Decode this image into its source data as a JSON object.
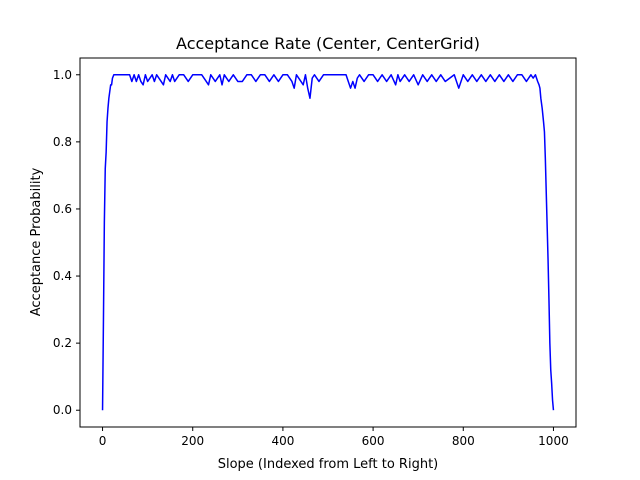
{
  "chart_data": {
    "type": "line",
    "title": "Acceptance Rate (Center, CenterGrid)",
    "xlabel": "Slope (Indexed from Left to Right)",
    "ylabel": "Acceptance Probability",
    "xlim": [
      -50,
      1050
    ],
    "ylim": [
      -0.05,
      1.05
    ],
    "xticks": [
      0,
      200,
      400,
      600,
      800,
      1000
    ],
    "yticks": [
      0.0,
      0.2,
      0.4,
      0.6,
      0.8,
      1.0
    ],
    "xtick_labels": [
      "0",
      "200",
      "400",
      "600",
      "800",
      "1000"
    ],
    "ytick_labels": [
      "0.0",
      "0.2",
      "0.4",
      "0.6",
      "0.8",
      "1.0"
    ],
    "grid": false,
    "series": [
      {
        "color": "#0000ff",
        "x": [
          0,
          2,
          4,
          6,
          8,
          10,
          12,
          14,
          16,
          18,
          20,
          22,
          25,
          28,
          30,
          35,
          40,
          45,
          50,
          60,
          65,
          70,
          75,
          80,
          85,
          90,
          95,
          100,
          110,
          115,
          120,
          130,
          135,
          140,
          150,
          155,
          160,
          170,
          180,
          190,
          200,
          210,
          220,
          230,
          235,
          240,
          250,
          260,
          265,
          270,
          280,
          290,
          300,
          310,
          320,
          330,
          340,
          350,
          360,
          370,
          380,
          390,
          400,
          410,
          420,
          425,
          430,
          440,
          445,
          450,
          455,
          460,
          465,
          470,
          480,
          490,
          500,
          510,
          520,
          530,
          540,
          545,
          550,
          555,
          560,
          565,
          570,
          580,
          590,
          600,
          610,
          620,
          630,
          640,
          650,
          655,
          660,
          670,
          680,
          690,
          700,
          710,
          720,
          730,
          740,
          750,
          760,
          770,
          780,
          790,
          800,
          810,
          820,
          830,
          840,
          850,
          860,
          870,
          880,
          890,
          900,
          910,
          920,
          930,
          940,
          950,
          955,
          960,
          965,
          968,
          970,
          972,
          975,
          978,
          980,
          982,
          985,
          988,
          990,
          992,
          994,
          996,
          998,
          1000
        ],
        "y": [
          0.0,
          0.27,
          0.56,
          0.72,
          0.77,
          0.86,
          0.9,
          0.93,
          0.95,
          0.97,
          0.97,
          0.99,
          1.0,
          1.0,
          1.0,
          1.0,
          1.0,
          1.0,
          1.0,
          1.0,
          0.98,
          1.0,
          0.98,
          1.0,
          0.98,
          0.97,
          1.0,
          0.98,
          1.0,
          0.98,
          1.0,
          0.98,
          0.97,
          1.0,
          0.98,
          1.0,
          0.98,
          1.0,
          1.0,
          0.98,
          1.0,
          1.0,
          1.0,
          0.98,
          0.97,
          1.0,
          0.98,
          1.0,
          0.97,
          1.0,
          0.98,
          1.0,
          0.98,
          0.98,
          1.0,
          1.0,
          0.98,
          1.0,
          1.0,
          0.98,
          1.0,
          0.98,
          1.0,
          1.0,
          0.98,
          0.96,
          1.0,
          0.98,
          0.97,
          1.0,
          0.96,
          0.93,
          0.99,
          1.0,
          0.98,
          1.0,
          1.0,
          1.0,
          1.0,
          1.0,
          1.0,
          0.98,
          0.96,
          0.98,
          0.96,
          0.99,
          1.0,
          0.98,
          1.0,
          1.0,
          0.98,
          1.0,
          0.98,
          1.0,
          0.97,
          1.0,
          0.98,
          1.0,
          0.98,
          1.0,
          0.97,
          1.0,
          0.98,
          1.0,
          0.98,
          1.0,
          0.98,
          0.99,
          1.0,
          0.96,
          1.0,
          0.98,
          1.0,
          0.98,
          1.0,
          0.98,
          1.0,
          0.98,
          1.0,
          0.98,
          1.0,
          0.98,
          1.0,
          1.0,
          0.98,
          1.0,
          0.99,
          1.0,
          0.98,
          0.97,
          0.96,
          0.93,
          0.9,
          0.86,
          0.83,
          0.75,
          0.6,
          0.45,
          0.33,
          0.2,
          0.12,
          0.08,
          0.03,
          0.0
        ]
      }
    ]
  }
}
